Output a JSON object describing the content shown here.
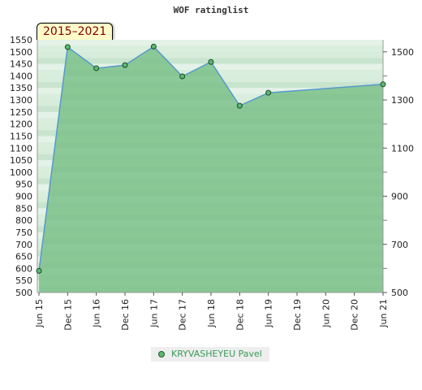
{
  "chart_data": {
    "type": "area",
    "title": "WOF ratinglist",
    "range_badge": "2015–2021",
    "categories": [
      "Jun 15",
      "Dec 15",
      "Jun 16",
      "Dec 16",
      "Jun 17",
      "Dec 17",
      "Jun 18",
      "Dec 18",
      "Jun 19",
      "Dec 19",
      "Jun 20",
      "Dec 20",
      "Jun 21"
    ],
    "series": [
      {
        "name": "KRYVASHEYEU Pavel",
        "color": "#5599cc",
        "fill": "#66b777",
        "points": [
          {
            "x": "Jun 15",
            "y": 590
          },
          {
            "x": "Dec 15",
            "y": 1520
          },
          {
            "x": "Jun 16",
            "y": 1432
          },
          {
            "x": "Dec 16",
            "y": 1445
          },
          {
            "x": "Jun 17",
            "y": 1522
          },
          {
            "x": "Dec 17",
            "y": 1398
          },
          {
            "x": "Jun 18",
            "y": 1458
          },
          {
            "x": "Dec 18",
            "y": 1276
          },
          {
            "x": "Jun 19",
            "y": 1330
          },
          {
            "x": "Jun 21",
            "y": 1365
          }
        ]
      }
    ],
    "ylim": [
      500,
      1550
    ],
    "y_left_ticks": [
      500,
      550,
      600,
      650,
      700,
      750,
      800,
      850,
      900,
      950,
      1000,
      1050,
      1100,
      1150,
      1200,
      1250,
      1300,
      1350,
      1400,
      1450,
      1500,
      1550
    ],
    "y_right_ticks": [
      500,
      700,
      900,
      1100,
      1300,
      1500
    ],
    "legend_position": "bottom-center",
    "grid": true
  }
}
